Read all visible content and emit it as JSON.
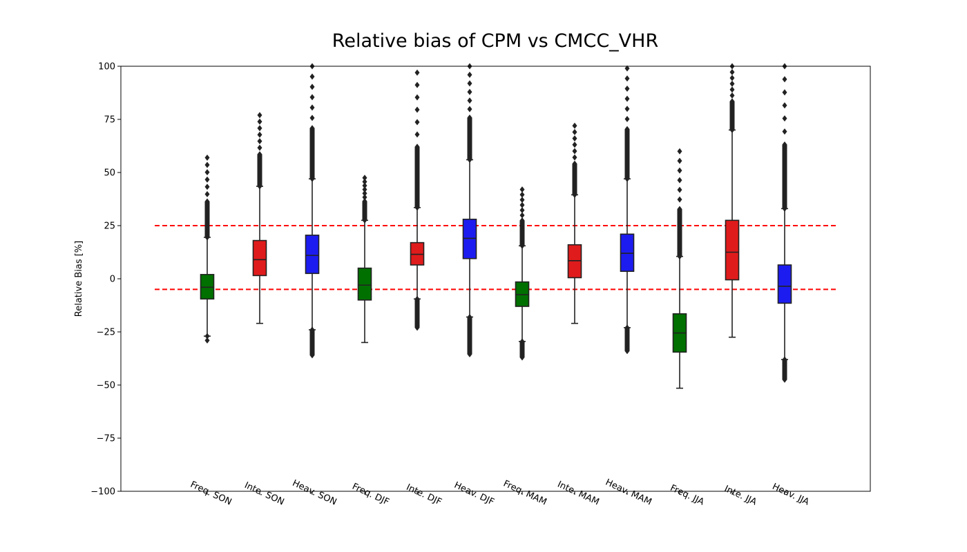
{
  "chart_data": {
    "type": "box",
    "title": "Relative bias of CPM vs CMCC_VHR",
    "xlabel": "",
    "ylabel": "Relative Bias [%]",
    "ylim": [
      -100,
      100
    ],
    "yticks": [
      -100,
      -75,
      -50,
      -25,
      0,
      25,
      50,
      75,
      100
    ],
    "grid": false,
    "reference_lines": [
      {
        "y": 25,
        "color": "#ff0000",
        "style": "dashed"
      },
      {
        "y": -5,
        "color": "#ff0000",
        "style": "dashed"
      }
    ],
    "colors": {
      "Freq.": "#007000",
      "Inte.": "#e01b1b",
      "Heav.": "#1c1cf0"
    },
    "categories": [
      "Freq. SON",
      "Inte. SON",
      "Heav. SON",
      "Freq. DJF",
      "Inte. DJF",
      "Heav. DJF",
      "Freq. MAM",
      "Inte. MAM",
      "Heav. MAM",
      "Freq. JJA",
      "Inte. JJA",
      "Heav. JJA"
    ],
    "boxes": [
      {
        "category": "Freq. SON",
        "whisker_low": -27,
        "q1": -9.5,
        "median": -4,
        "q3": 2,
        "whisker_high": 19.5,
        "outliers_low": [
          -29,
          -27
        ],
        "outliers_high_range": [
          19.5,
          57
        ]
      },
      {
        "category": "Inte. SON",
        "whisker_low": -21,
        "q1": 1.5,
        "median": 9,
        "q3": 18,
        "whisker_high": 43.5,
        "outliers_low": [],
        "outliers_high_range": [
          43.5,
          77
        ]
      },
      {
        "category": "Heav. SON",
        "whisker_low": -24,
        "q1": 2.5,
        "median": 11,
        "q3": 20.5,
        "whisker_high": 47,
        "outliers_low_range": [
          -36,
          -24
        ],
        "outliers_high_range": [
          47,
          100
        ]
      },
      {
        "category": "Freq. DJF",
        "whisker_low": -30,
        "q1": -10,
        "median": -3,
        "q3": 5,
        "whisker_high": 27.5,
        "outliers_low": [],
        "outliers_high_range": [
          27.5,
          47.5
        ]
      },
      {
        "category": "Inte. DJF",
        "whisker_low": -9.5,
        "q1": 6.5,
        "median": 11.5,
        "q3": 17,
        "whisker_high": 33.5,
        "outliers_low_range": [
          -23,
          -9.5
        ],
        "outliers_high_range": [
          33.5,
          97
        ]
      },
      {
        "category": "Heav. DJF",
        "whisker_low": -18,
        "q1": 9.5,
        "median": 19,
        "q3": 28,
        "whisker_high": 56,
        "outliers_low_range": [
          -35.5,
          -18
        ],
        "outliers_high_range": [
          56,
          100
        ]
      },
      {
        "category": "Freq. MAM",
        "whisker_low": -29.5,
        "q1": -13,
        "median": -7.5,
        "q3": -1.5,
        "whisker_high": 15.5,
        "outliers_low_range": [
          -37,
          -29.5
        ],
        "outliers_high_range": [
          15.5,
          42
        ]
      },
      {
        "category": "Inte. MAM",
        "whisker_low": -21,
        "q1": 0.5,
        "median": 8.5,
        "q3": 16,
        "whisker_high": 39.5,
        "outliers_low": [],
        "outliers_high_range": [
          39.5,
          72
        ]
      },
      {
        "category": "Heav. MAM",
        "whisker_low": -23,
        "q1": 3.5,
        "median": 12,
        "q3": 21,
        "whisker_high": 47,
        "outliers_low_range": [
          -34,
          -23
        ],
        "outliers_high_range": [
          47,
          99
        ]
      },
      {
        "category": "Freq. JJA",
        "whisker_low": -51.5,
        "q1": -34.5,
        "median": -25.5,
        "q3": -16.5,
        "whisker_high": 10.5,
        "outliers_low": [],
        "outliers_high_range": [
          10.5,
          60
        ]
      },
      {
        "category": "Inte. JJA",
        "whisker_low": -27.5,
        "q1": -0.5,
        "median": 12.5,
        "q3": 27.5,
        "whisker_high": 70,
        "outliers_low": [],
        "outliers_high_range": [
          70,
          100
        ]
      },
      {
        "category": "Heav. JJA",
        "whisker_low": -38,
        "q1": -11.5,
        "median": -3.5,
        "q3": 6.5,
        "whisker_high": 33,
        "outliers_low_range": [
          -47.5,
          -38
        ],
        "outliers_high_range": [
          33,
          100
        ]
      }
    ]
  }
}
